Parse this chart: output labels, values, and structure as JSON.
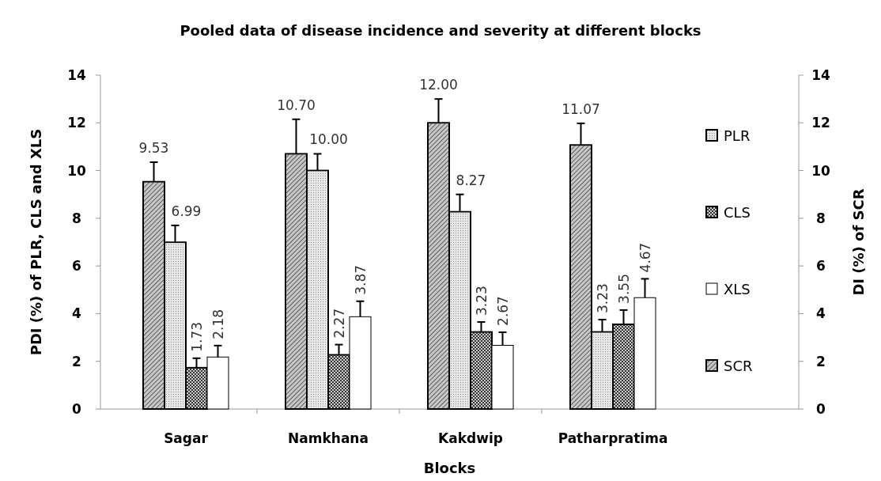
{
  "chart_data": {
    "type": "bar",
    "title": "Pooled data of disease incidence and severity at different blocks",
    "xlabel": "Blocks",
    "ylabel": "PDI (%) of PLR, CLS and XLS",
    "y2label": "DI (%) of SCR",
    "categories": [
      "Sagar",
      "Namkhana",
      "Kakdwip",
      "Patharpratima"
    ],
    "series": [
      {
        "name": "SCR",
        "color": "#8c8c8c",
        "axis": "y2",
        "values": [
          9.53,
          10.7,
          12.0,
          11.07
        ],
        "errors": [
          [
            9.53,
            10.35
          ],
          [
            10.7,
            12.15
          ],
          [
            12.0,
            13.0
          ],
          [
            11.07,
            11.98
          ]
        ],
        "value_labels": [
          "9.53",
          "10.70",
          "12.00",
          "11.07"
        ]
      },
      {
        "name": "PLR",
        "color": "#e6e6e6",
        "values": [
          6.99,
          10.0,
          8.27,
          3.23
        ],
        "errors": [
          [
            6.99,
            7.7
          ],
          [
            10.0,
            10.7
          ],
          [
            8.27,
            9.0
          ],
          [
            3.23,
            3.75
          ]
        ],
        "value_labels": [
          "6.99",
          "10.00",
          "8.27",
          "3.23"
        ]
      },
      {
        "name": "CLS",
        "color": "#5a5a5a",
        "values": [
          1.73,
          2.27,
          3.23,
          3.55
        ],
        "errors": [
          [
            1.73,
            2.13
          ],
          [
            2.27,
            2.7
          ],
          [
            3.23,
            3.65
          ],
          [
            3.55,
            4.15
          ]
        ],
        "value_labels": [
          "1.73",
          "2.27",
          "3.23",
          "3.55"
        ]
      },
      {
        "name": "XLS",
        "color": "#ffffff",
        "values": [
          2.18,
          3.87,
          2.67,
          4.67
        ],
        "errors": [
          [
            2.18,
            2.66
          ],
          [
            3.87,
            4.52
          ],
          [
            2.67,
            3.22
          ],
          [
            4.67,
            5.46
          ]
        ],
        "value_labels": [
          "2.18",
          "3.87",
          "2.67",
          "4.67"
        ]
      }
    ],
    "ylim": [
      0,
      14
    ],
    "yticks": [
      0,
      2,
      4,
      6,
      8,
      10,
      12,
      14
    ],
    "y2lim": [
      0,
      14
    ],
    "y2ticks": [
      0,
      2,
      4,
      6,
      8,
      10,
      12,
      14
    ],
    "legend": "right"
  }
}
